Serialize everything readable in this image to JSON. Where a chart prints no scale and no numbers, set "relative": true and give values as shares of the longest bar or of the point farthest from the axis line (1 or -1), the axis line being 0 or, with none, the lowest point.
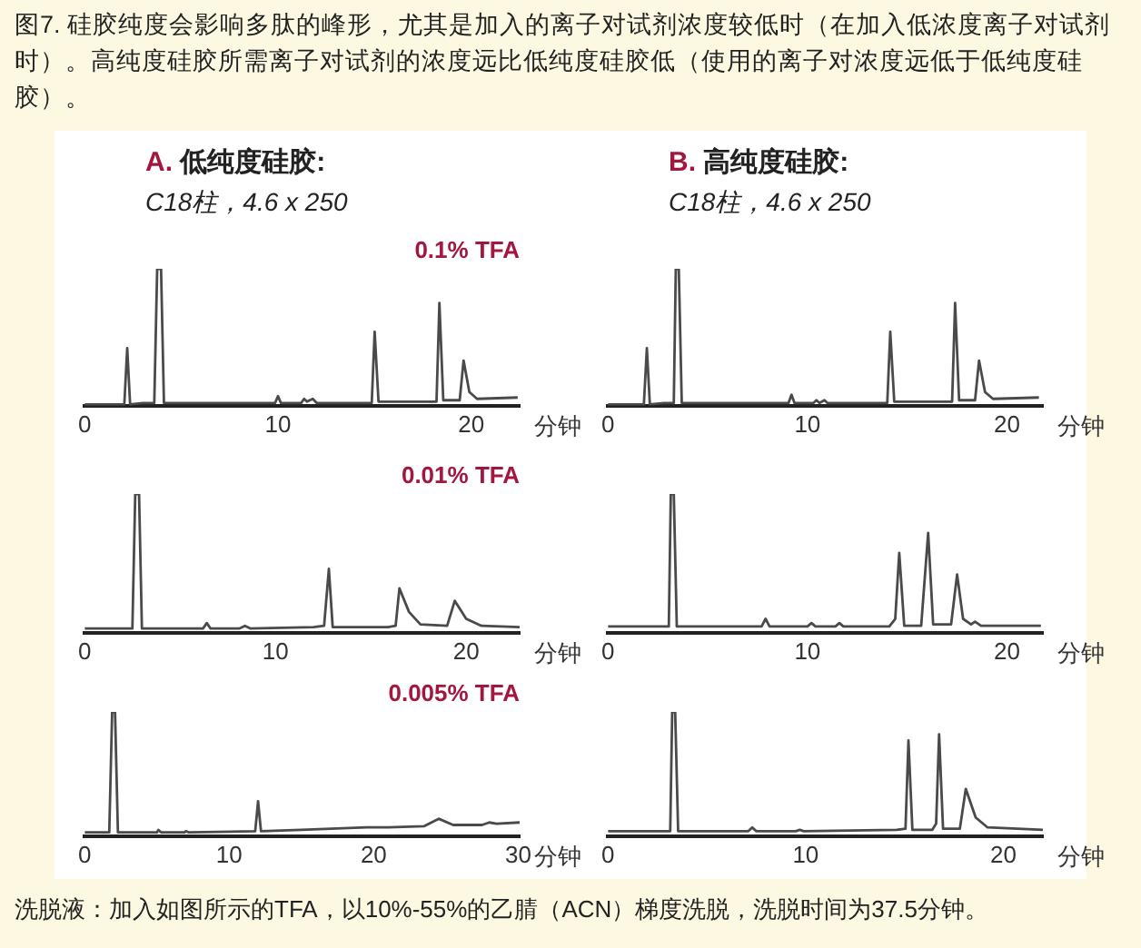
{
  "chart_data": [
    {
      "type": "line",
      "title": "A. 低纯度硅胶:",
      "subtitle": "C18柱，4.6 x 250",
      "annotations": [
        "0.1% TFA"
      ],
      "xlabel": "分钟",
      "relative": true,
      "xlim": [
        0,
        22.5
      ],
      "xticks": [
        0,
        10,
        20
      ],
      "grid": false,
      "series": [
        {
          "color": "#4a4a4a",
          "x": [
            0,
            2.05,
            2.2,
            2.35,
            3.0,
            3.6,
            3.75,
            3.95,
            4.1,
            7,
            9.85,
            10.0,
            10.15,
            11.2,
            11.35,
            11.5,
            11.8,
            12.0,
            14.85,
            15.0,
            15.2,
            17.5,
            18.2,
            18.35,
            18.55,
            19.4,
            19.6,
            19.9,
            20.3,
            22.4
          ],
          "values": [
            0.01,
            0.01,
            0.42,
            0.01,
            0.02,
            0.02,
            1,
            1,
            0.02,
            0.02,
            0.02,
            0.07,
            0.02,
            0.02,
            0.05,
            0.03,
            0.05,
            0.02,
            0.02,
            0.54,
            0.03,
            0.03,
            0.03,
            0.75,
            0.04,
            0.04,
            0.33,
            0.1,
            0.05,
            0.06
          ]
        }
      ]
    },
    {
      "type": "line",
      "title": "B. 高纯度硅胶:",
      "subtitle": "C18柱，4.6 x 250",
      "xlabel": "分钟",
      "relative": true,
      "xlim": [
        0,
        21.8
      ],
      "xticks": [
        0,
        10,
        20
      ],
      "grid": false,
      "series": [
        {
          "color": "#4a4a4a",
          "x": [
            0,
            1.8,
            1.95,
            2.1,
            2.8,
            3.3,
            3.4,
            3.55,
            3.7,
            6,
            9.05,
            9.2,
            9.35,
            10.3,
            10.45,
            10.6,
            10.85,
            11.0,
            14.0,
            14.15,
            14.35,
            16.5,
            17.25,
            17.4,
            17.6,
            18.4,
            18.6,
            18.9,
            19.3,
            21.6
          ],
          "values": [
            0.01,
            0.01,
            0.42,
            0.01,
            0.02,
            0.02,
            1,
            1,
            0.02,
            0.02,
            0.02,
            0.08,
            0.02,
            0.02,
            0.04,
            0.02,
            0.04,
            0.02,
            0.02,
            0.54,
            0.03,
            0.03,
            0.03,
            0.75,
            0.04,
            0.04,
            0.33,
            0.1,
            0.05,
            0.06
          ]
        }
      ]
    },
    {
      "type": "line",
      "annotations": [
        "0.01% TFA"
      ],
      "xlabel": "分钟",
      "relative": true,
      "xlim": [
        0,
        22.8
      ],
      "xticks": [
        0,
        10,
        20
      ],
      "grid": false,
      "series": [
        {
          "color": "#4a4a4a",
          "x": [
            0,
            2.0,
            2.5,
            2.65,
            2.85,
            3.0,
            6.2,
            6.4,
            6.6,
            8.1,
            8.4,
            8.7,
            12.0,
            12.55,
            12.8,
            13.0,
            15.9,
            16.3,
            16.5,
            17.0,
            17.6,
            19.0,
            19.4,
            20.0,
            20.8,
            22.8
          ],
          "values": [
            0.03,
            0.03,
            0.03,
            1,
            1,
            0.03,
            0.03,
            0.07,
            0.03,
            0.03,
            0.05,
            0.03,
            0.04,
            0.05,
            0.46,
            0.04,
            0.04,
            0.05,
            0.32,
            0.15,
            0.06,
            0.05,
            0.23,
            0.1,
            0.05,
            0.04
          ]
        }
      ]
    },
    {
      "type": "line",
      "xlabel": "分钟",
      "relative": true,
      "xlim": [
        0,
        21.8
      ],
      "xticks": [
        0,
        10,
        20
      ],
      "grid": false,
      "series": [
        {
          "color": "#4a4a4a",
          "x": [
            0,
            2.5,
            3.05,
            3.15,
            3.3,
            3.45,
            7.7,
            7.9,
            8.1,
            10.0,
            10.2,
            10.4,
            11.4,
            11.6,
            11.8,
            14.1,
            14.4,
            14.6,
            14.85,
            15.7,
            16.05,
            16.3,
            17.2,
            17.5,
            17.8,
            18.2,
            18.4,
            18.7,
            21.7
          ],
          "values": [
            0.045,
            0.045,
            0.045,
            1,
            1,
            0.045,
            0.045,
            0.1,
            0.045,
            0.045,
            0.07,
            0.045,
            0.045,
            0.07,
            0.045,
            0.045,
            0.1,
            0.575,
            0.05,
            0.05,
            0.72,
            0.06,
            0.06,
            0.42,
            0.1,
            0.06,
            0.08,
            0.05,
            0.05
          ]
        }
      ]
    },
    {
      "type": "line",
      "annotations": [
        "0.005% TFA"
      ],
      "xlabel": "分钟",
      "relative": true,
      "xlim": [
        0,
        30.1
      ],
      "xticks": [
        0,
        10,
        20,
        30
      ],
      "grid": false,
      "series": [
        {
          "color": "#4a4a4a",
          "x": [
            0,
            1.7,
            1.9,
            2.1,
            2.3,
            5.0,
            5.1,
            5.3,
            6.9,
            7.0,
            7.2,
            11.8,
            12.0,
            12.2,
            15,
            19.5,
            21,
            23.5,
            24.5,
            25.5,
            27.5,
            28.0,
            28.5,
            30.1
          ],
          "values": [
            0.03,
            0.03,
            1,
            1,
            0.03,
            0.03,
            0.05,
            0.03,
            0.03,
            0.04,
            0.03,
            0.04,
            0.28,
            0.04,
            0.05,
            0.07,
            0.07,
            0.08,
            0.14,
            0.09,
            0.09,
            0.11,
            0.1,
            0.11
          ]
        }
      ]
    },
    {
      "type": "line",
      "xlabel": "分钟",
      "relative": true,
      "xlim": [
        0,
        22
      ],
      "xticks": [
        0,
        10,
        20
      ],
      "grid": false,
      "series": [
        {
          "color": "#4a4a4a",
          "x": [
            0,
            2.7,
            3.15,
            3.25,
            3.4,
            3.55,
            7.1,
            7.3,
            7.5,
            9.5,
            9.7,
            9.9,
            14.6,
            15.05,
            15.2,
            15.4,
            16.4,
            16.6,
            16.75,
            16.95,
            17.8,
            18.1,
            18.6,
            19.2,
            22
          ],
          "values": [
            0.04,
            0.04,
            0.04,
            1,
            1,
            0.04,
            0.04,
            0.07,
            0.04,
            0.04,
            0.05,
            0.04,
            0.05,
            0.06,
            0.77,
            0.05,
            0.05,
            0.1,
            0.82,
            0.06,
            0.06,
            0.38,
            0.15,
            0.07,
            0.05
          ]
        }
      ]
    },
    {
      "type": "other",
      "title": "图7. 硅胶纯度会影响多肽的峰形，尤其是加入的离子对试剂浓度较低时（在加入低浓度离子对试剂时）。高纯度硅胶所需离子对试剂的浓度远比低纯度硅胶低（使用的离子对浓度远低于低纯度硅胶）。",
      "annotations": [
        "洗脱液：加入如图所示的TFA，以10%-55%的乙腈（ACN）梯度洗脱，洗脱时间为37.5分钟。"
      ]
    }
  ]
}
